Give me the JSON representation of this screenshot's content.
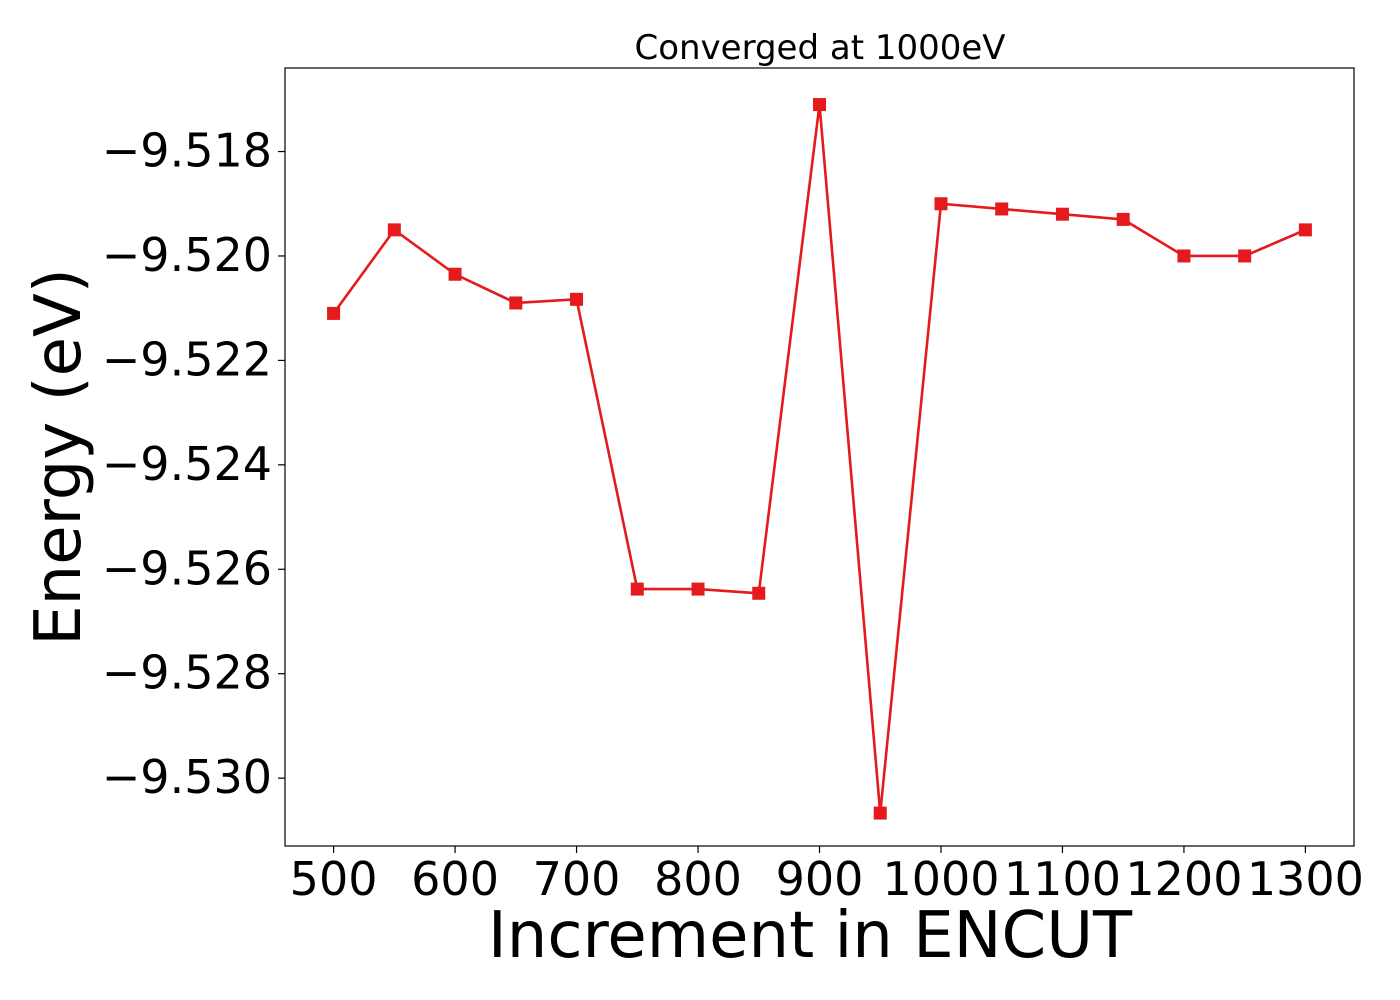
{
  "chart_data": {
    "type": "line",
    "title": "Converged at 1000eV",
    "xlabel": "Increment in ENCUT",
    "ylabel": "Energy (eV)",
    "x": [
      500,
      550,
      600,
      650,
      700,
      750,
      800,
      850,
      900,
      950,
      1000,
      1050,
      1100,
      1150,
      1200,
      1250,
      1300
    ],
    "series": [
      {
        "values": [
          -9.5211,
          -9.5195,
          -9.52035,
          -9.5209,
          -9.52083,
          -9.52638,
          -9.52638,
          -9.52646,
          -9.5171,
          -9.53067,
          -9.519,
          -9.5191,
          -9.5192,
          -9.5193,
          -9.52,
          -9.52,
          -9.5195
        ],
        "color": "#e41a1c",
        "marker": "square"
      }
    ],
    "xlim": [
      460,
      1340
    ],
    "ylim": [
      -9.5313,
      -9.5164
    ],
    "xticks": [
      500,
      600,
      700,
      800,
      900,
      1000,
      1100,
      1200,
      1300
    ],
    "xtick_labels": [
      "500",
      "600",
      "700",
      "800",
      "900",
      "1000",
      "1100",
      "1200",
      "1300"
    ],
    "yticks": [
      -9.518,
      -9.52,
      -9.522,
      -9.524,
      -9.526,
      -9.528,
      -9.53
    ],
    "ytick_labels": [
      "−9.518",
      "−9.520",
      "−9.522",
      "−9.524",
      "−9.526",
      "−9.528",
      "−9.530"
    ],
    "grid": false,
    "legend": "none"
  }
}
